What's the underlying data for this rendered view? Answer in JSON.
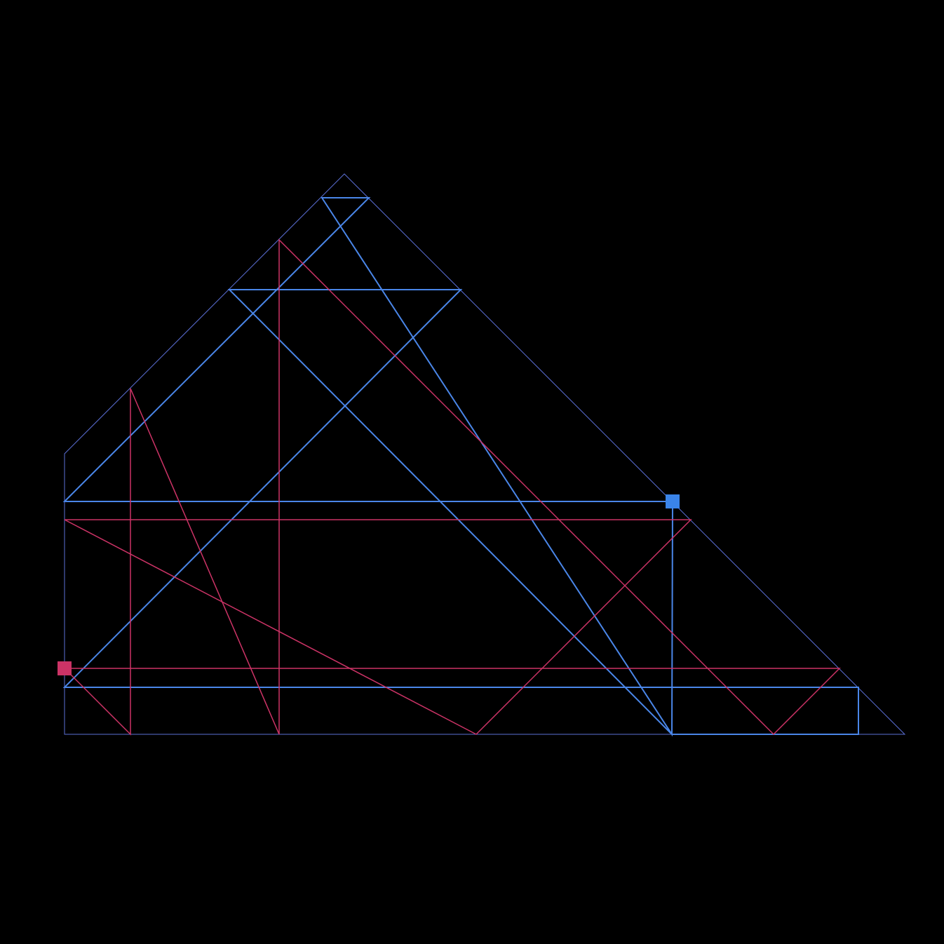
{
  "diagram": {
    "background": "#000000",
    "outline_color": "#5b6fd6",
    "blue_color": "#4a86e8",
    "red_color": "#cc3366",
    "blue_marker_color": "#3a84ea",
    "red_marker_color": "#cc3366"
  }
}
